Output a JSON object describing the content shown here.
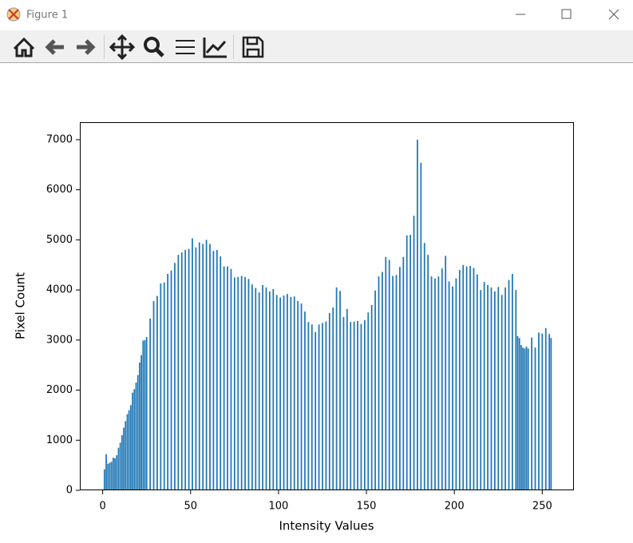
{
  "window_title": "Figure 1",
  "chart_data": {
    "type": "bar",
    "xlabel": "Intensity Values",
    "ylabel": "Pixel Count",
    "color": "#1f77b4",
    "x": [
      1,
      2,
      3,
      4,
      5,
      6,
      7,
      8,
      9,
      10,
      11,
      12,
      13,
      14,
      15,
      16,
      17,
      18,
      19,
      20,
      21,
      22,
      23,
      24,
      25,
      27,
      29,
      31,
      33,
      35,
      37,
      39,
      41,
      43,
      45,
      47,
      49,
      51,
      53,
      55,
      57,
      59,
      61,
      63,
      65,
      67,
      69,
      71,
      73,
      75,
      77,
      79,
      81,
      83,
      85,
      87,
      89,
      91,
      93,
      95,
      97,
      99,
      101,
      103,
      105,
      107,
      109,
      111,
      113,
      115,
      117,
      119,
      121,
      123,
      125,
      127,
      129,
      131,
      133,
      135,
      137,
      139,
      141,
      143,
      145,
      147,
      149,
      151,
      153,
      155,
      157,
      159,
      161,
      163,
      165,
      167,
      169,
      171,
      173,
      175,
      177,
      179,
      181,
      183,
      185,
      187,
      189,
      191,
      193,
      195,
      197,
      199,
      201,
      203,
      205,
      207,
      209,
      211,
      213,
      215,
      217,
      219,
      221,
      223,
      225,
      227,
      229,
      231,
      233,
      235,
      236,
      237,
      238,
      239,
      240,
      241,
      242,
      244,
      246,
      248,
      250,
      252,
      254,
      255
    ],
    "values": [
      420,
      720,
      530,
      550,
      570,
      650,
      640,
      700,
      850,
      950,
      1100,
      1250,
      1380,
      1520,
      1600,
      1700,
      1950,
      2020,
      2150,
      2300,
      2550,
      2700,
      2990,
      3000,
      3060,
      3430,
      3780,
      3880,
      4130,
      4150,
      4320,
      4390,
      4540,
      4700,
      4750,
      4800,
      4820,
      5030,
      4850,
      4950,
      4920,
      5000,
      4920,
      4780,
      4800,
      4670,
      4470,
      4470,
      4420,
      4250,
      4260,
      4280,
      4260,
      4220,
      4110,
      4040,
      3950,
      4100,
      4050,
      3970,
      4020,
      3900,
      3850,
      3890,
      3920,
      3860,
      3870,
      3780,
      3730,
      3570,
      3360,
      3310,
      3160,
      3310,
      3340,
      3370,
      3540,
      3650,
      4050,
      3980,
      3460,
      3620,
      3360,
      3370,
      3380,
      3320,
      3400,
      3550,
      3700,
      3990,
      4270,
      4360,
      4660,
      4600,
      4280,
      4300,
      4460,
      4660,
      5090,
      5100,
      5480,
      7000,
      6540,
      4940,
      4700,
      4270,
      4230,
      4270,
      4430,
      4680,
      4170,
      4070,
      4230,
      4400,
      4500,
      4470,
      4480,
      4440,
      4310,
      4000,
      4160,
      4100,
      4050,
      3970,
      4060,
      3900,
      4050,
      4200,
      4320,
      4000,
      3080,
      3040,
      2900,
      2850,
      2830,
      2870,
      2830,
      3050,
      2850,
      3150,
      3130,
      3240,
      3120,
      3040
    ],
    "xlim": [
      -13,
      268
    ],
    "ylim": [
      0,
      7350
    ],
    "xticks": [
      0,
      50,
      100,
      150,
      200,
      250
    ],
    "yticks": [
      0,
      1000,
      2000,
      3000,
      4000,
      5000,
      6000,
      7000
    ]
  }
}
